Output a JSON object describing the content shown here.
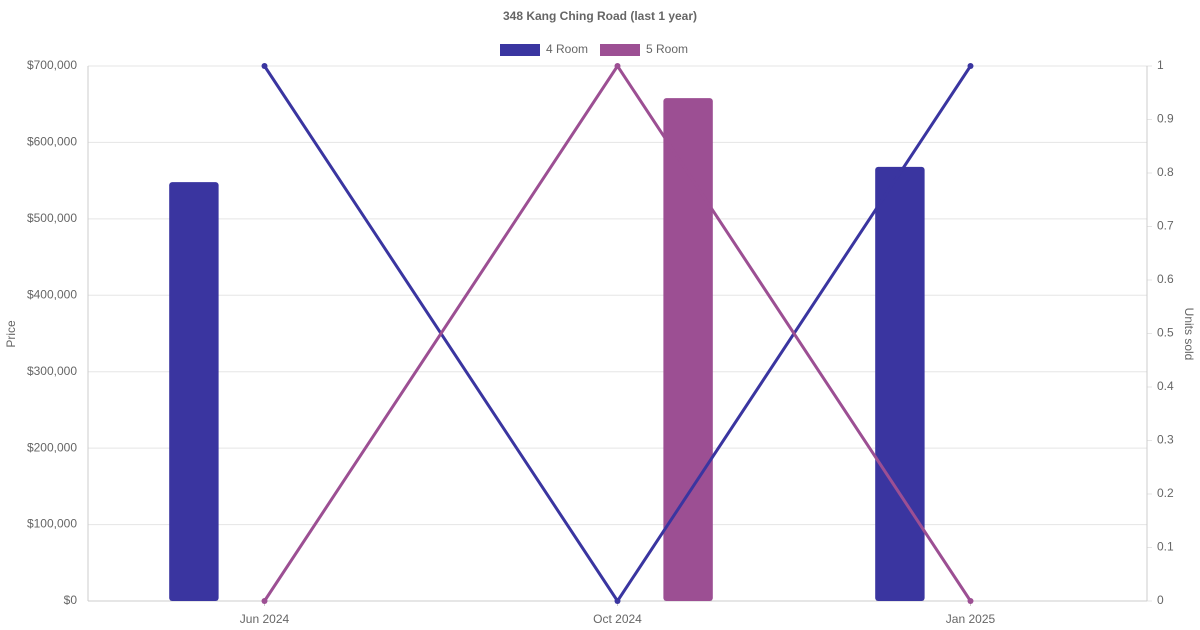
{
  "chart_data": {
    "type": "bar",
    "title": "348 Kang Ching Road (last 1 year)",
    "categories": [
      "Jun 2024",
      "Oct 2024",
      "Jan 2025"
    ],
    "series": [
      {
        "name": "4 Room",
        "type": "bar",
        "color": "#3a35a0",
        "values": [
          548000,
          null,
          568000
        ]
      },
      {
        "name": "5 Room",
        "type": "bar",
        "color": "#9c4f93",
        "values": [
          null,
          658000,
          null
        ]
      },
      {
        "type": "line",
        "axis": "y2",
        "color": "#3a35a0",
        "values": [
          1,
          0,
          1
        ]
      },
      {
        "type": "line",
        "axis": "y2",
        "color": "#9c4f93",
        "values": [
          0,
          1,
          0
        ]
      }
    ],
    "ylabel": "Price",
    "y2label": "Units sold",
    "ylim": [
      0,
      700000
    ],
    "yticks": [
      {
        "value": 0,
        "label": "$0"
      },
      {
        "value": 100000,
        "label": "$100,000"
      },
      {
        "value": 200000,
        "label": "$200,000"
      },
      {
        "value": 300000,
        "label": "$300,000"
      },
      {
        "value": 400000,
        "label": "$400,000"
      },
      {
        "value": 500000,
        "label": "$500,000"
      },
      {
        "value": 600000,
        "label": "$600,000"
      },
      {
        "value": 700000,
        "label": "$700,000"
      }
    ],
    "y2lim": [
      0,
      1
    ],
    "y2ticks": [
      0,
      0.1,
      0.2,
      0.3,
      0.4,
      0.5,
      0.6,
      0.7,
      0.8,
      0.9,
      1
    ],
    "grid": true,
    "legend": "top"
  }
}
